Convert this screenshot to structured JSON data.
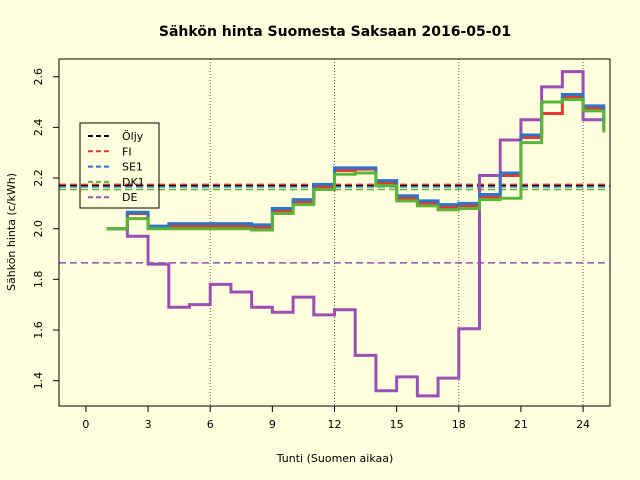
{
  "chart_data": {
    "type": "line",
    "title": "Sähkön hinta Suomesta Saksaan 2016-05-01",
    "xlabel": "Tunti (Suomen aikaa)",
    "ylabel": "Sähkön hinta (c/kWh)",
    "xlim": [
      -1.3,
      25.3
    ],
    "ylim": [
      1.3,
      2.67
    ],
    "x_ticks": [
      0,
      3,
      6,
      9,
      12,
      15,
      18,
      21,
      24
    ],
    "y_ticks": [
      1.4,
      1.6,
      1.8,
      2.0,
      2.2,
      2.4,
      2.6
    ],
    "x_tick_labels": [
      "0",
      "3",
      "6",
      "9",
      "12",
      "15",
      "18",
      "21",
      "24"
    ],
    "y_tick_labels": [
      "1.4",
      "1.6",
      "1.8",
      "2.0",
      "2.2",
      "2.4",
      "2.6"
    ],
    "vertical_gridlines": [
      6,
      12,
      18,
      24
    ],
    "legend_position": "top-left",
    "step_type": "post",
    "x": [
      1,
      2,
      3,
      4,
      5,
      6,
      7,
      8,
      9,
      10,
      11,
      12,
      13,
      14,
      15,
      16,
      17,
      18,
      19,
      20,
      21,
      22,
      23,
      24,
      25
    ],
    "series": [
      {
        "name": "Öljy",
        "color": "#000000",
        "style": "dashed",
        "kind": "average",
        "value": 2.17
      },
      {
        "name": "FI",
        "color": "#DF3B2F",
        "style": "dashed",
        "kind": "average",
        "value": 2.175,
        "values": [
          2.0,
          2.06,
          2.005,
          2.01,
          2.01,
          2.01,
          2.01,
          2.005,
          2.07,
          2.105,
          2.165,
          2.23,
          2.235,
          2.18,
          2.12,
          2.1,
          2.085,
          2.09,
          2.125,
          2.21,
          2.36,
          2.455,
          2.52,
          2.475,
          2.39
        ]
      },
      {
        "name": "SE1",
        "color": "#2F74C8",
        "style": "dashed",
        "kind": "average",
        "value": 2.165,
        "values": [
          2.0,
          2.065,
          2.01,
          2.02,
          2.02,
          2.02,
          2.02,
          2.015,
          2.08,
          2.115,
          2.175,
          2.24,
          2.24,
          2.19,
          2.13,
          2.11,
          2.095,
          2.1,
          2.135,
          2.22,
          2.37,
          2.5,
          2.53,
          2.485,
          2.4
        ]
      },
      {
        "name": "DK1",
        "color": "#5BB53A",
        "style": "dashed",
        "kind": "average",
        "value": 2.155,
        "values": [
          2.0,
          2.04,
          2.0,
          2.0,
          2.0,
          2.0,
          2.0,
          1.995,
          2.06,
          2.095,
          2.155,
          2.215,
          2.22,
          2.17,
          2.11,
          2.09,
          2.075,
          2.08,
          2.115,
          2.12,
          2.34,
          2.5,
          2.51,
          2.465,
          2.38
        ]
      },
      {
        "name": "DE",
        "color": "#9B4FB5",
        "style": "dashed",
        "kind": "average",
        "value": 1.865,
        "values": [
          2.0,
          1.97,
          1.86,
          1.69,
          1.7,
          1.78,
          1.75,
          1.69,
          1.67,
          1.73,
          1.66,
          1.68,
          1.5,
          1.36,
          1.415,
          1.34,
          1.41,
          1.605,
          2.21,
          2.35,
          2.43,
          2.56,
          2.62,
          2.43,
          2.43
        ]
      }
    ]
  }
}
